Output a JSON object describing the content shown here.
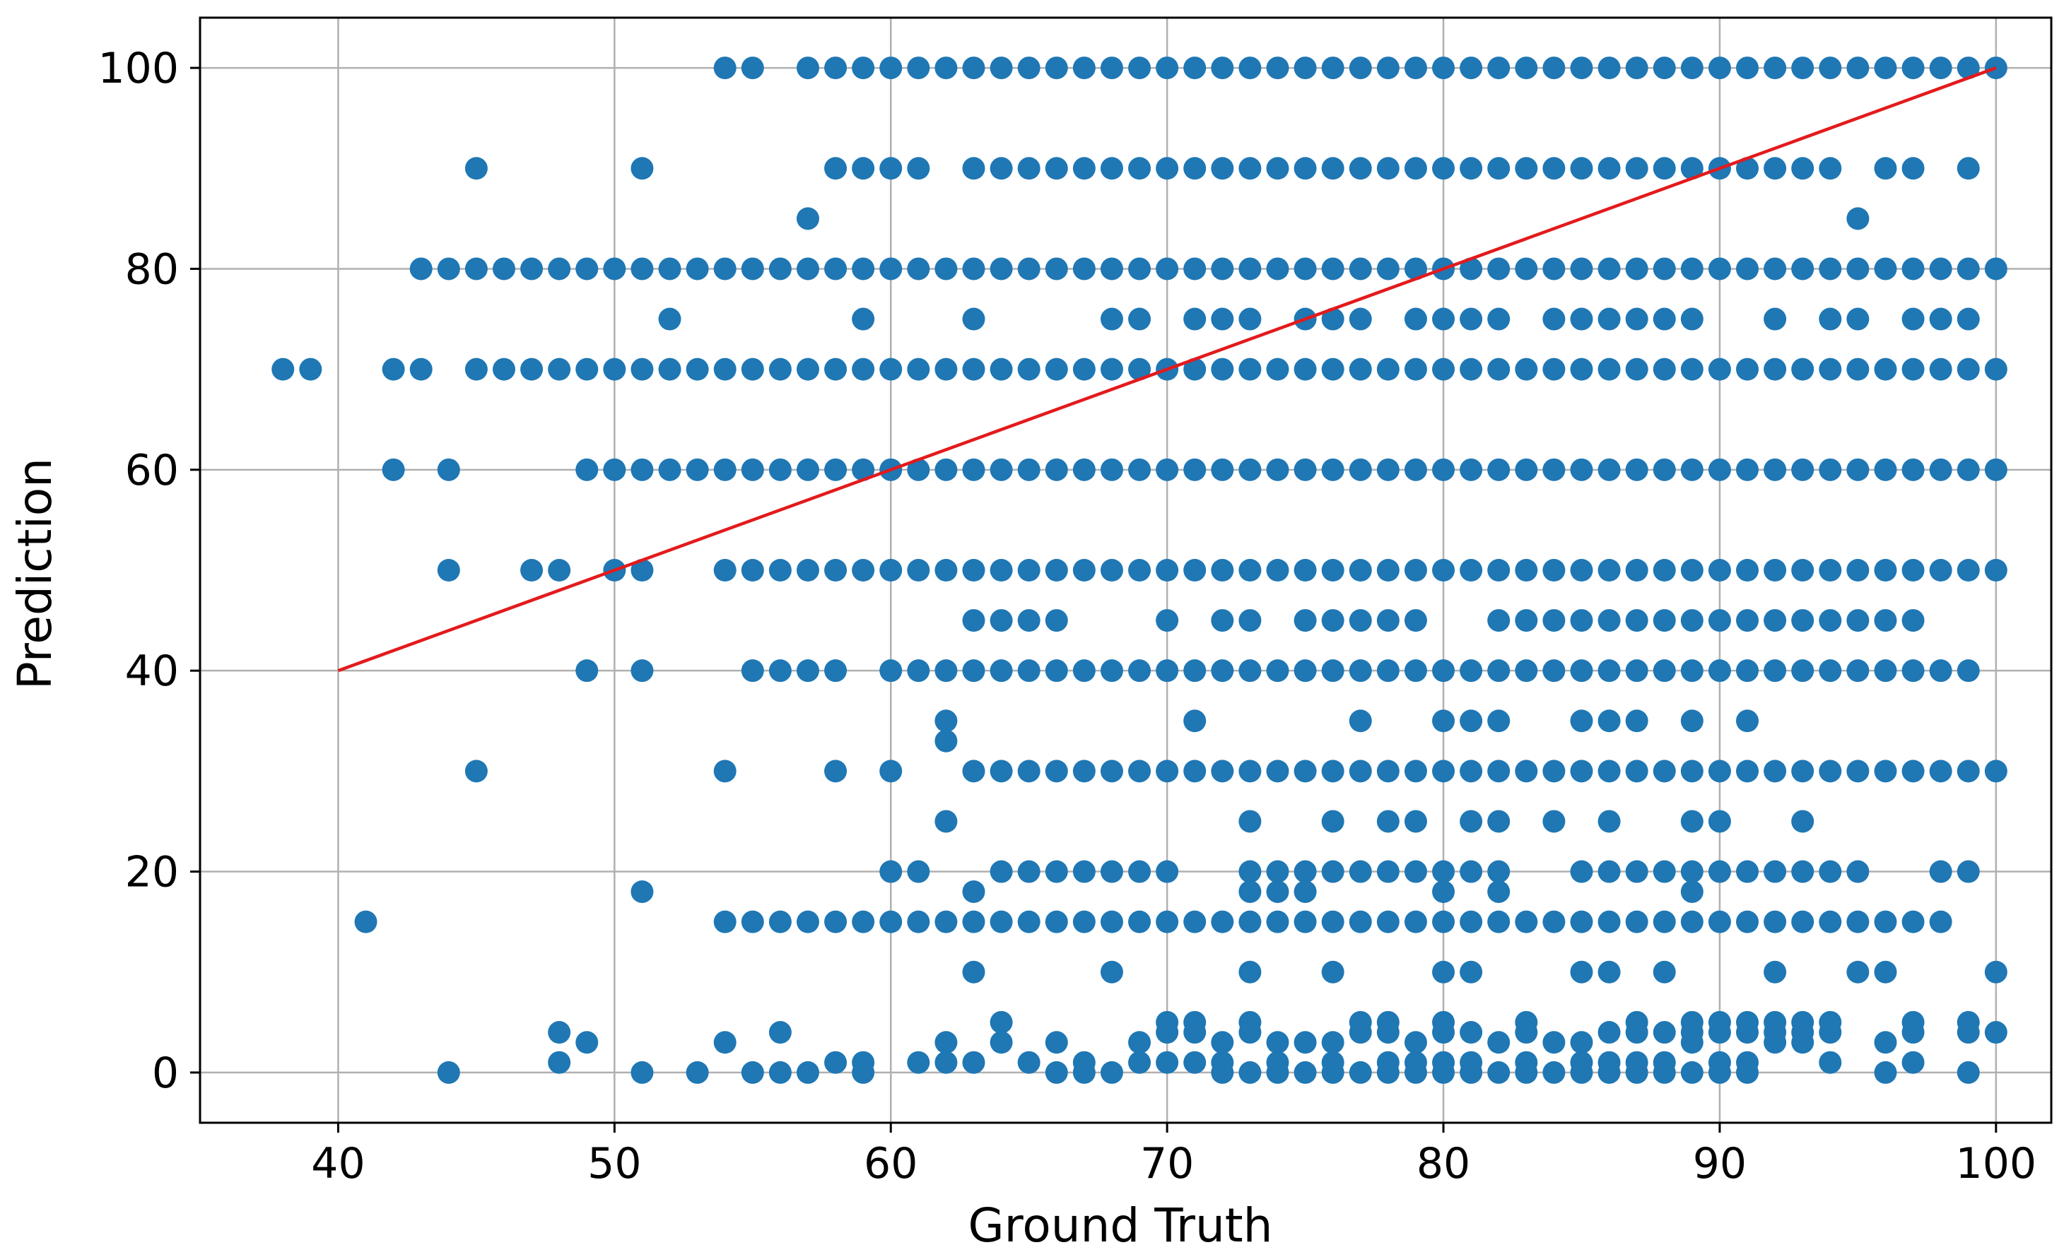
{
  "chart_data": {
    "type": "scatter",
    "title": "",
    "xlabel": "Ground Truth",
    "ylabel": "Prediction",
    "xlim": [
      35,
      102
    ],
    "ylim": [
      -5,
      105
    ],
    "xticks": [
      40,
      50,
      60,
      70,
      80,
      90,
      100
    ],
    "yticks": [
      0,
      20,
      40,
      60,
      80,
      100
    ],
    "grid": true,
    "colors": {
      "points": "#1f77b4",
      "reference_line": "#e31a1c",
      "grid": "#b0b0b0"
    },
    "reference_line": {
      "x": [
        40,
        100
      ],
      "y": [
        40,
        100
      ]
    },
    "series": [
      {
        "rows": [
          {
            "y": 100,
            "x_from": 57,
            "x_to": 100,
            "extra_x": [
              54,
              55
            ]
          },
          {
            "y": 90,
            "x_from": 63,
            "x_to": 93,
            "extra_x": [
              45,
              51,
              58,
              59,
              60,
              61,
              94,
              96,
              97,
              99
            ]
          },
          {
            "y": 85,
            "x_from": null,
            "x_to": null,
            "extra_x": [
              57,
              95
            ]
          },
          {
            "y": 80,
            "x_from": 43,
            "x_to": 100,
            "extra_x": []
          },
          {
            "y": 75,
            "x_from": null,
            "x_to": null,
            "extra_x": [
              52,
              59,
              63,
              68,
              69,
              71,
              72,
              73,
              75,
              76,
              77,
              79,
              80,
              81,
              82,
              84,
              85,
              86,
              87,
              88,
              89,
              92,
              94,
              95,
              97,
              98,
              99
            ]
          },
          {
            "y": 70,
            "x_from": 45,
            "x_to": 100,
            "extra_x": [
              38,
              39,
              42,
              43
            ]
          },
          {
            "y": 60,
            "x_from": 49,
            "x_to": 100,
            "extra_x": [
              42,
              44
            ]
          },
          {
            "y": 50,
            "x_from": 54,
            "x_to": 100,
            "extra_x": [
              44,
              47,
              48,
              50,
              51
            ]
          },
          {
            "y": 45,
            "x_from": null,
            "x_to": null,
            "extra_x": [
              63,
              64,
              65,
              66,
              70,
              72,
              73,
              75,
              76,
              77,
              78,
              79,
              82,
              83,
              84,
              85,
              86,
              87,
              88,
              89,
              90,
              91,
              92,
              93,
              94,
              95,
              96,
              97
            ]
          },
          {
            "y": 40,
            "x_from": 60,
            "x_to": 99,
            "extra_x": [
              49,
              51,
              55,
              56,
              57,
              58
            ]
          },
          {
            "y": 35,
            "x_from": null,
            "x_to": null,
            "extra_x": [
              62,
              71,
              77,
              80,
              81,
              82,
              85,
              86,
              87,
              89,
              91
            ]
          },
          {
            "y": 33,
            "x_from": null,
            "x_to": null,
            "extra_x": [
              62
            ]
          },
          {
            "y": 30,
            "x_from": 63,
            "x_to": 100,
            "extra_x": [
              45,
              54,
              58,
              60
            ]
          },
          {
            "y": 25,
            "x_from": null,
            "x_to": null,
            "extra_x": [
              62,
              73,
              76,
              78,
              79,
              81,
              82,
              84,
              86,
              89,
              90,
              93
            ]
          },
          {
            "y": 20,
            "x_from": null,
            "x_to": null,
            "extra_x": [
              60,
              61,
              64,
              65,
              66,
              67,
              68,
              69,
              70,
              73,
              74,
              75,
              76,
              77,
              78,
              79,
              80,
              81,
              82,
              85,
              86,
              87,
              88,
              89,
              90,
              91,
              92,
              93,
              94,
              95,
              98,
              99
            ]
          },
          {
            "y": 18,
            "x_from": null,
            "x_to": null,
            "extra_x": [
              51,
              63,
              73,
              74,
              75,
              80,
              82,
              89
            ]
          },
          {
            "y": 15,
            "x_from": 54,
            "x_to": 98,
            "extra_x": [
              41
            ]
          },
          {
            "y": 10,
            "x_from": null,
            "x_to": null,
            "extra_x": [
              63,
              68,
              73,
              76,
              80,
              81,
              85,
              86,
              88,
              92,
              95,
              96,
              100
            ]
          },
          {
            "y": 5,
            "x_from": null,
            "x_to": null,
            "extra_x": [
              64,
              70,
              71,
              73,
              77,
              78,
              80,
              83,
              87,
              89,
              90,
              91,
              92,
              93,
              94,
              97,
              99
            ]
          },
          {
            "y": 4,
            "x_from": null,
            "x_to": null,
            "extra_x": [
              48,
              56,
              70,
              71,
              73,
              77,
              78,
              80,
              81,
              83,
              86,
              87,
              88,
              89,
              90,
              91,
              92,
              93,
              94,
              97,
              99,
              100
            ]
          },
          {
            "y": 3,
            "x_from": null,
            "x_to": null,
            "extra_x": [
              49,
              54,
              62,
              64,
              66,
              69,
              72,
              74,
              75,
              76,
              79,
              82,
              84,
              85,
              89,
              92,
              93,
              96
            ]
          },
          {
            "y": 1,
            "x_from": null,
            "x_to": null,
            "extra_x": [
              48,
              58,
              59,
              61,
              62,
              63,
              65,
              67,
              69,
              70,
              71,
              72,
              74,
              76,
              78,
              79,
              80,
              81,
              83,
              85,
              86,
              87,
              88,
              90,
              91,
              94,
              97
            ]
          },
          {
            "y": 0,
            "x_from": null,
            "x_to": null,
            "extra_x": [
              44,
              51,
              53,
              55,
              56,
              57,
              59,
              66,
              67,
              68,
              72,
              73,
              74,
              75,
              76,
              77,
              78,
              79,
              80,
              81,
              82,
              83,
              84,
              85,
              86,
              87,
              88,
              89,
              90,
              91,
              96,
              99
            ]
          }
        ]
      }
    ]
  }
}
